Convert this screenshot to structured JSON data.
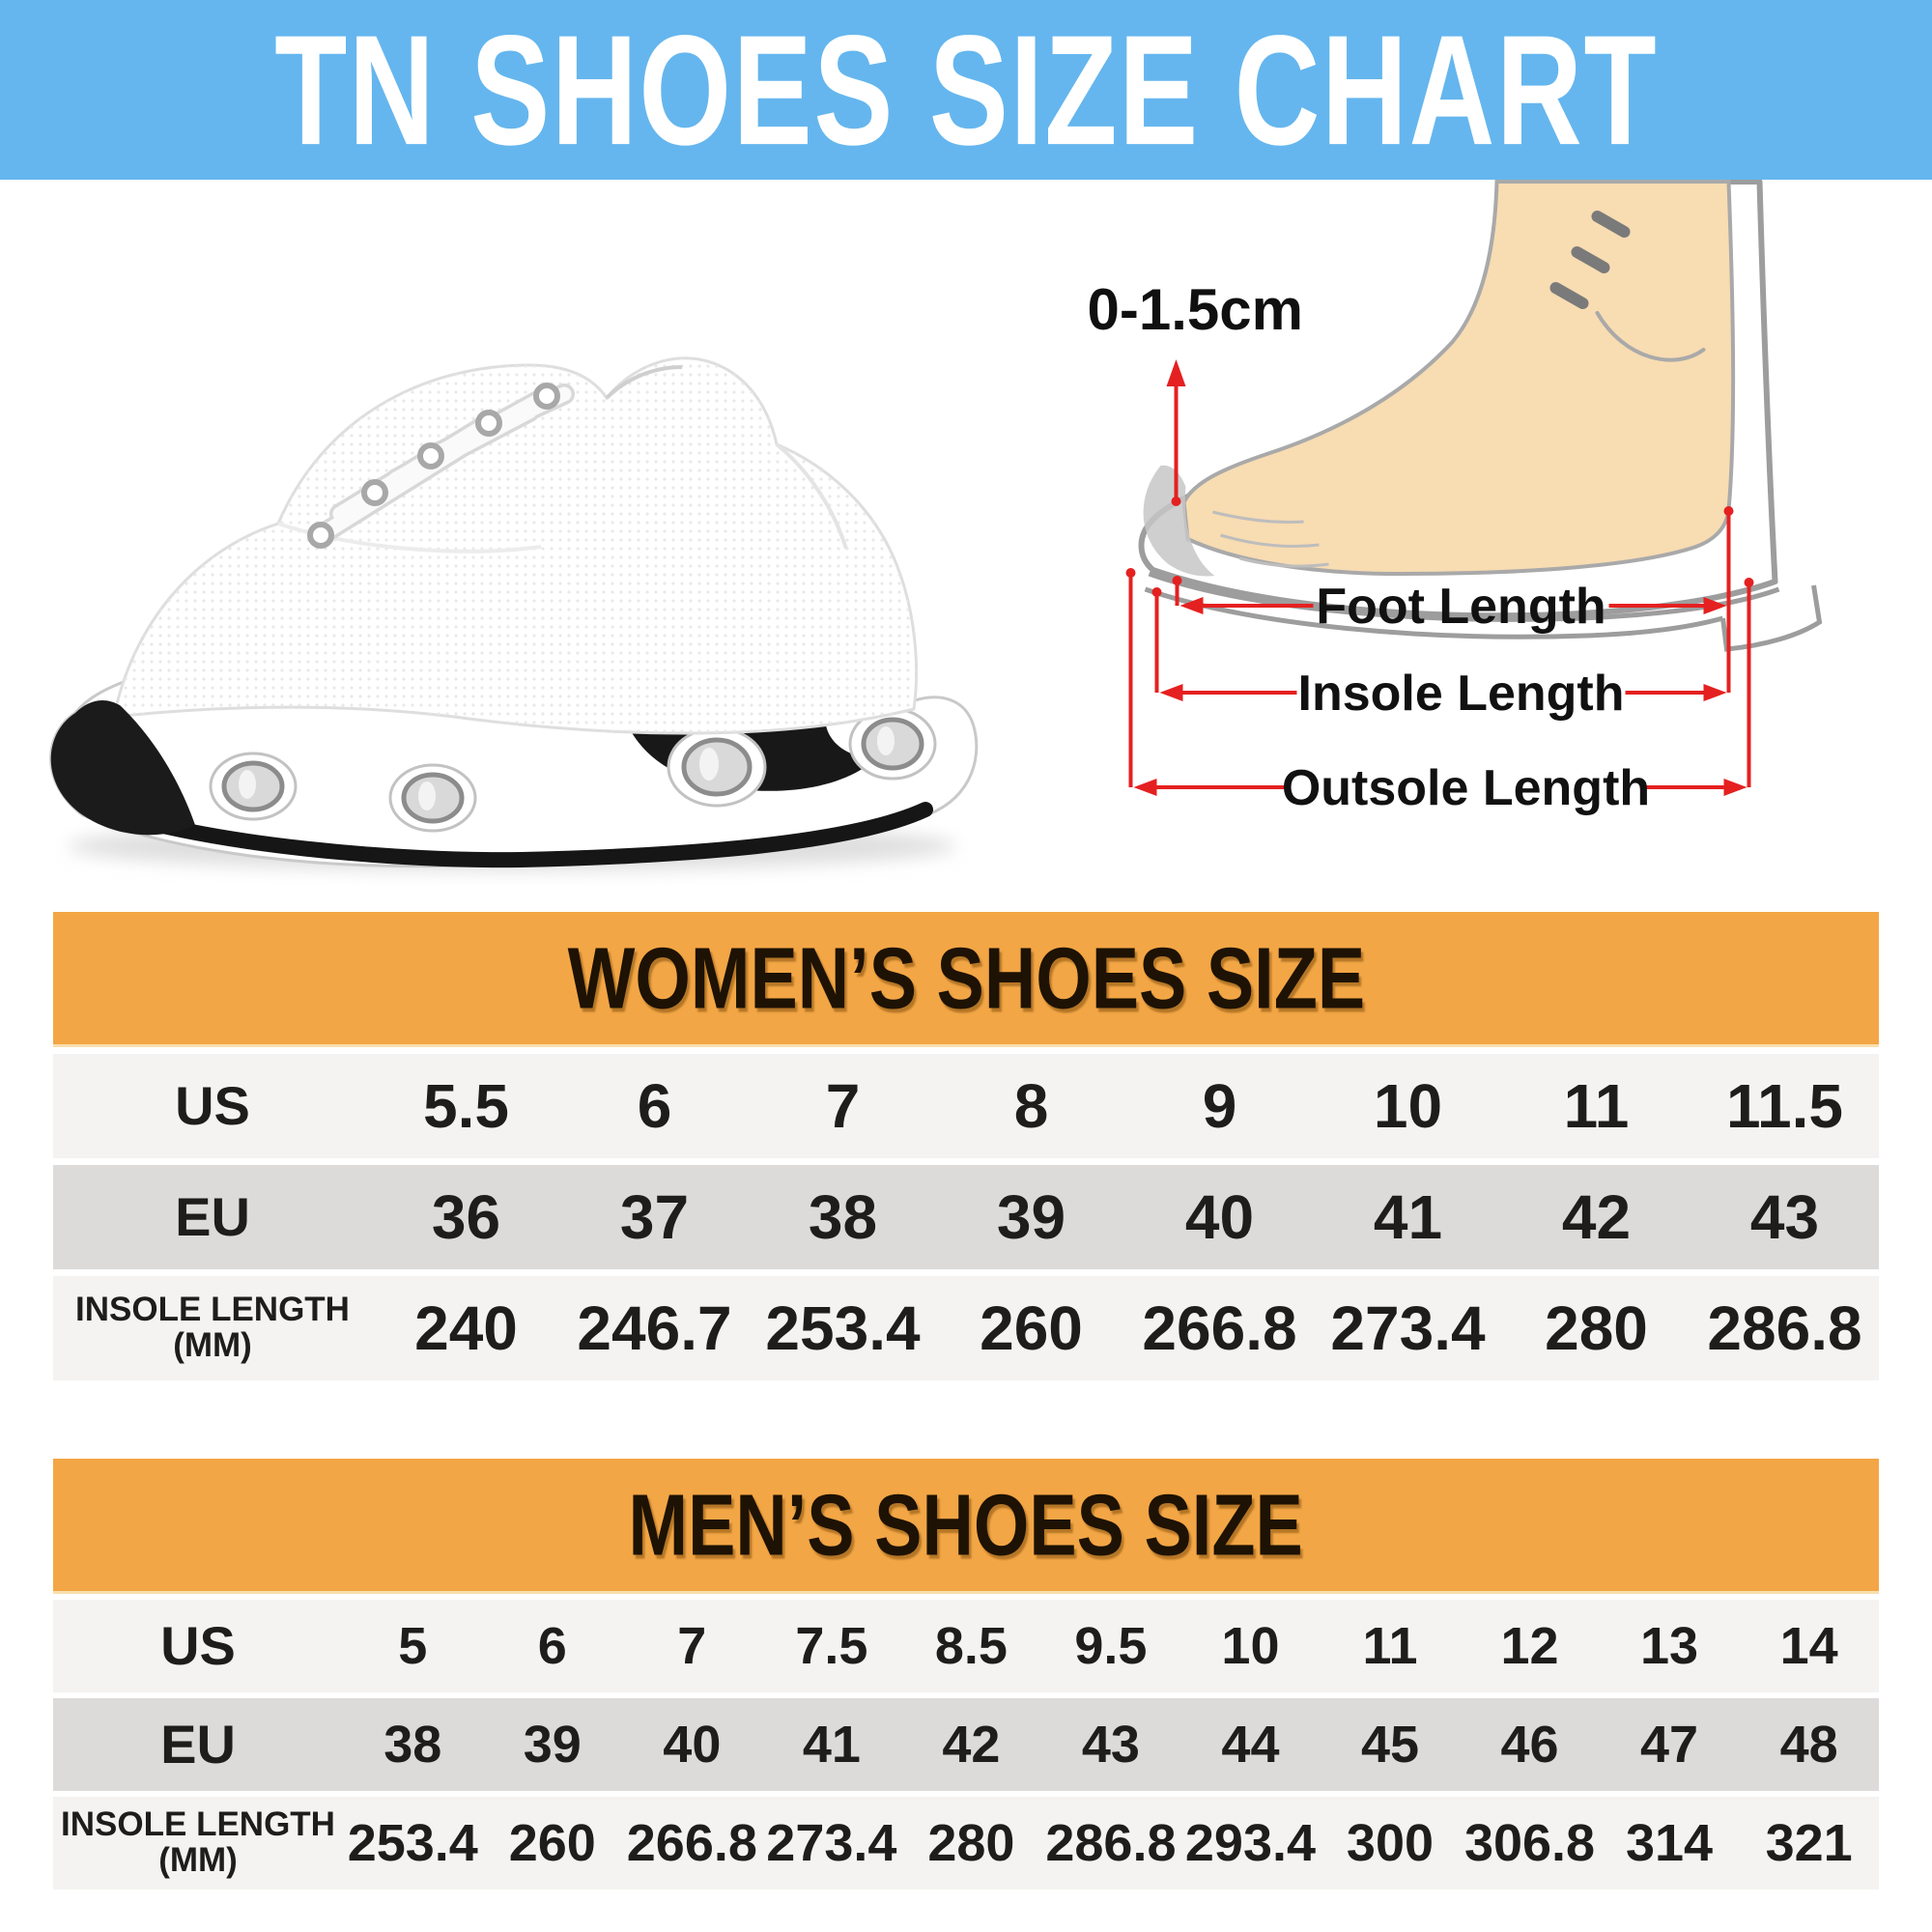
{
  "header": {
    "title": "TN SHOES SIZE CHART"
  },
  "colors": {
    "banner_blue": "#65b6ee",
    "section_orange": "#f3a645",
    "row_light": "#f4f3f1",
    "row_gray": "#dcdbd9",
    "arrow_red": "#e52020",
    "foot_skin": "#f8dcb2",
    "sneaker_black": "#1b1b1b"
  },
  "diagram": {
    "gap_label": "0-1.5cm",
    "foot_length_label": "Foot Length",
    "insole_length_label": "Insole Length",
    "outsole_length_label": "Outsole Length"
  },
  "chart_data": [
    {
      "type": "table",
      "title": "WOMEN’S SHOES SIZE",
      "rows": [
        {
          "label": "US",
          "values": [
            "5.5",
            "6",
            "7",
            "8",
            "9",
            "10",
            "11",
            "11.5"
          ]
        },
        {
          "label": "EU",
          "values": [
            "36",
            "37",
            "38",
            "39",
            "40",
            "41",
            "42",
            "43"
          ]
        },
        {
          "label": "INSOLE LENGTH\n(MM)",
          "values": [
            "240",
            "246.7",
            "253.4",
            "260",
            "266.8",
            "273.4",
            "280",
            "286.8"
          ]
        }
      ]
    },
    {
      "type": "table",
      "title": "MEN’S SHOES SIZE",
      "rows": [
        {
          "label": "US",
          "values": [
            "5",
            "6",
            "7",
            "7.5",
            "8.5",
            "9.5",
            "10",
            "11",
            "12",
            "13",
            "14"
          ]
        },
        {
          "label": "EU",
          "values": [
            "38",
            "39",
            "40",
            "41",
            "42",
            "43",
            "44",
            "45",
            "46",
            "47",
            "48"
          ]
        },
        {
          "label": "INSOLE LENGTH\n(MM)",
          "values": [
            "253.4",
            "260",
            "266.8",
            "273.4",
            "280",
            "286.8",
            "293.4",
            "300",
            "306.8",
            "314",
            "321"
          ]
        }
      ]
    }
  ]
}
